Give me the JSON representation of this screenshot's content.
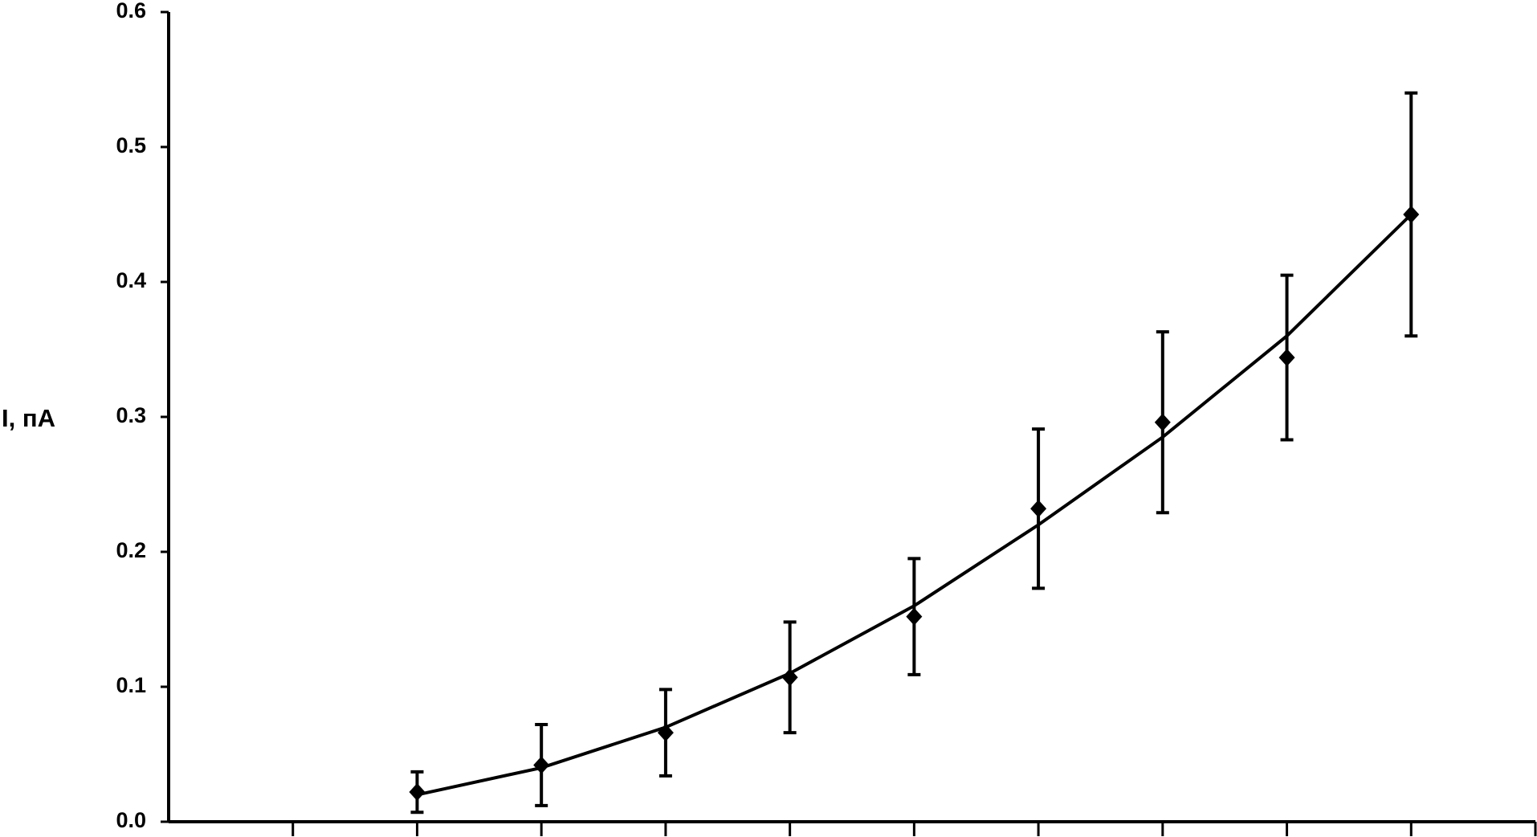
{
  "chart_data": {
    "type": "errorbar-line",
    "y_label": "I, пА",
    "categories": [
      null,
      null,
      null,
      null,
      null,
      null,
      null,
      null,
      null,
      null,
      null
    ],
    "values": [
      null,
      0.022,
      0.042,
      0.066,
      0.107,
      0.152,
      0.232,
      0.296,
      0.344,
      0.45,
      null
    ],
    "errors": [
      null,
      0.015,
      0.03,
      0.032,
      0.041,
      0.043,
      0.059,
      0.067,
      0.061,
      0.09,
      null
    ],
    "fit_values": [
      null,
      0.02,
      0.04,
      0.07,
      0.11,
      0.16,
      0.22,
      0.285,
      0.36,
      0.45,
      null
    ],
    "color": "#000000",
    "ylim": [
      0,
      0.6
    ],
    "yticks": [
      {
        "value": 0,
        "label": "0.0"
      },
      0.1,
      0.2,
      0.3,
      0.4,
      0.5,
      0.6
    ],
    "grid": false
  }
}
